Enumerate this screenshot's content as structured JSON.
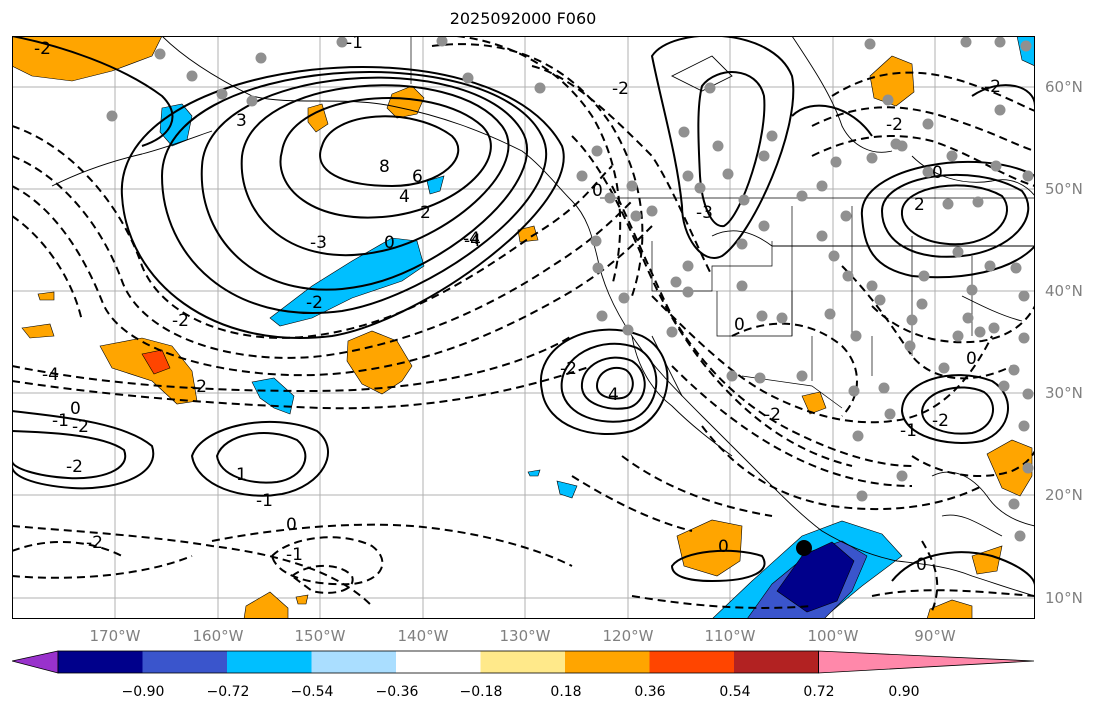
{
  "title": "2025092000 F060",
  "lat_labels": [
    "60°N",
    "50°N",
    "40°N",
    "30°N",
    "20°N",
    "10°N"
  ],
  "lon_labels": [
    "170°W",
    "160°W",
    "150°W",
    "140°W",
    "130°W",
    "120°W",
    "110°W",
    "100°W",
    "90°W"
  ],
  "contour_labels": [
    "-2",
    "8",
    "6",
    "4",
    "2",
    "0",
    "-3",
    "-4",
    "-2",
    "3",
    "-2",
    "0",
    "-4",
    "-2",
    "-2",
    "-1",
    "-2",
    "1",
    "-1",
    "-2",
    "0",
    "-1",
    "0",
    "-1",
    "-2",
    "0",
    "-4",
    "-3",
    "4",
    "-2",
    "0",
    "-2",
    "2",
    "0",
    "-2",
    "0",
    "-2",
    "-1",
    "-2",
    "0"
  ],
  "colorbar": {
    "colors": [
      "#9932cc",
      "#00008b",
      "#3a55cc",
      "#00bfff",
      "#aadeff",
      "#ffffff",
      "#ffe98a",
      "#ffa500",
      "#ff4500",
      "#b22222",
      "#ff88aa"
    ],
    "tick_labels": [
      "−0.90",
      "−0.72",
      "−0.54",
      "−0.36",
      "−0.18",
      "0.18",
      "0.36",
      "0.54",
      "0.72",
      "0.90"
    ]
  },
  "fill_colors": {
    "lightblue": "#aadeff",
    "blue": "#00bfff",
    "medblue": "#3a55cc",
    "navy": "#00008b",
    "orange": "#ffa500",
    "red": "#ff4500"
  }
}
